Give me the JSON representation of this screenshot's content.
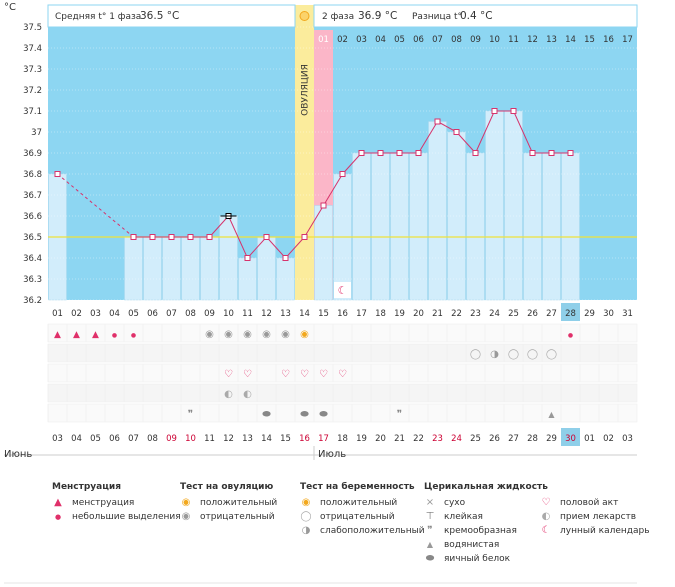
{
  "chart_data": {
    "type": "line",
    "title": "",
    "ylabel": "°C",
    "ylim": [
      36.2,
      37.5
    ],
    "yticks": [
      "36.2",
      "36.3",
      "36.4",
      "36.5",
      "36.6",
      "36.7",
      "36.8",
      "36.9",
      "37",
      "37.1",
      "37.2",
      "37.3",
      "37.4",
      "37.5"
    ],
    "phase1_label": "Средняя t° 1 фаза",
    "phase1_value": "36.5 °C",
    "phase2_label": "2 фаза",
    "phase2_value": "36.9 °C",
    "diff_label": "Разница t°",
    "diff_value": "0.4 °C",
    "ovulation_label": "ОВУЛЯЦИЯ",
    "ovulation_day": 14,
    "coverline": 36.5,
    "days": [
      "01",
      "02",
      "03",
      "04",
      "05",
      "06",
      "07",
      "08",
      "09",
      "10",
      "11",
      "12",
      "13",
      "14",
      "15",
      "16",
      "17",
      "18",
      "19",
      "20",
      "21",
      "22",
      "23",
      "24",
      "25",
      "26",
      "27",
      "28",
      "29",
      "30",
      "31"
    ],
    "top_days": [
      "01",
      "02",
      "03",
      "04",
      "05",
      "06",
      "07",
      "08",
      "09",
      "10",
      "11",
      "12",
      "13",
      "14",
      "15",
      "16",
      "17"
    ],
    "temps": [
      36.8,
      null,
      null,
      null,
      36.5,
      36.5,
      36.5,
      36.5,
      36.5,
      36.6,
      36.4,
      36.5,
      36.4,
      36.5,
      36.65,
      36.8,
      36.9,
      36.9,
      36.9,
      36.9,
      37.05,
      37.0,
      36.9,
      37.1,
      37.1,
      36.9,
      36.9,
      36.9,
      null,
      null,
      null
    ],
    "dates": [
      "03",
      "04",
      "05",
      "06",
      "07",
      "08",
      "09",
      "10",
      "11",
      "12",
      "13",
      "14",
      "15",
      "16",
      "17",
      "18",
      "19",
      "20",
      "21",
      "22",
      "23",
      "24",
      "25",
      "26",
      "27",
      "28",
      "29",
      "30",
      "01",
      "02",
      "03"
    ],
    "weekend_dates": [
      6,
      7,
      13,
      14,
      20,
      21,
      27
    ],
    "month_start": "Июнь",
    "month_next": "Июль",
    "highlight_day": "28",
    "highlight_date": "30",
    "next_period_day": 15,
    "today_day": 28,
    "menstruation": [
      [
        "heavy"
      ],
      [
        "heavy"
      ],
      [
        "heavy"
      ],
      [
        "light"
      ],
      [
        "light"
      ]
    ],
    "ovulation_test": {
      "neg": [
        9,
        10,
        11,
        12,
        13
      ],
      "pos": [
        14
      ]
    },
    "pregnancy_test": {
      "neg": [
        23,
        25,
        26,
        27
      ],
      "weak": [
        24
      ]
    },
    "intercourse": [
      10,
      11,
      13,
      14,
      15,
      16
    ],
    "medication": [
      10,
      11
    ],
    "cervical": {
      "creamy": [
        8,
        19
      ],
      "watery": [
        27
      ],
      "eggwhite": [
        12,
        14,
        15
      ]
    },
    "moon_day": 16,
    "legend": {
      "menstruation": {
        "title": "Менструация",
        "items": [
          "менструация",
          "небольшие выделения"
        ]
      },
      "ovulation": {
        "title": "Тест на овуляцию",
        "items": [
          "положительный",
          "отрицательный"
        ]
      },
      "pregnancy": {
        "title": "Тест на беременность",
        "items": [
          "положительный",
          "отрицательный",
          "слабоположительный"
        ]
      },
      "cervical": {
        "title": "Церикальная жидкость",
        "items": [
          "сухо",
          "клейкая",
          "кремообразная",
          "водянистая",
          "яичный белок"
        ]
      },
      "other": {
        "items": [
          "половой акт",
          "прием лекарств",
          "лунный календарь"
        ]
      }
    },
    "colors": {
      "axis_blue": "#8dd6f2",
      "bar": "#d2edfb",
      "bar_line": "#a9d8ee",
      "line": "#d6336c",
      "coverline": "#f0e33a",
      "ovulation": "#fbec9c",
      "next_period": "#fbb6c8",
      "highlight": "#8fcfe9",
      "weekend": "#cc0033"
    }
  }
}
